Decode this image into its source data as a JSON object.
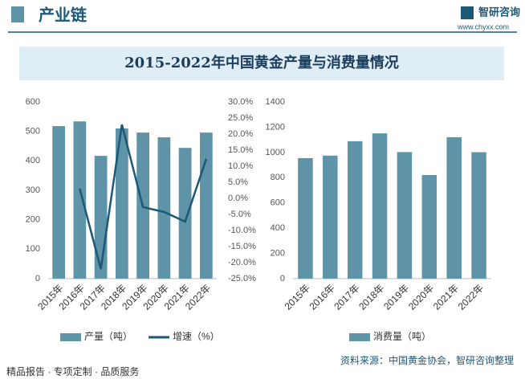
{
  "header": {
    "title": "产业链",
    "brand": "智研咨询",
    "url": "www.chyxx.com"
  },
  "title": "2015-2022年中国黄金产量与消费量情况",
  "chart_data": [
    {
      "type": "bar",
      "categories": [
        "2015年",
        "2016年",
        "2017年",
        "2018年",
        "2019年",
        "2020年",
        "2021年",
        "2022年"
      ],
      "series": [
        {
          "name": "产量（吨）",
          "color": "#5e93a8",
          "values": [
            518,
            534,
            417,
            510,
            496,
            480,
            444,
            496
          ]
        },
        {
          "name": "增速（%）",
          "color": "#1d5876",
          "type": "line",
          "axis": "y2",
          "values": [
            null,
            3.0,
            -22.0,
            23.0,
            -2.75,
            -4.25,
            -7.25,
            12.25
          ]
        }
      ],
      "ylim": [
        0,
        600
      ],
      "yticks": [
        0,
        100,
        200,
        300,
        400,
        500,
        600
      ],
      "y2lim": [
        -25,
        30
      ],
      "y2ticks": [
        {
          "value": -25,
          "label": "-25.0%"
        },
        {
          "value": -20,
          "label": "-20.0%"
        },
        {
          "value": -15,
          "label": "-15.0%"
        },
        {
          "value": -10,
          "label": "-10.0%"
        },
        {
          "value": -5,
          "label": "-5.0%"
        },
        {
          "value": 0,
          "label": "0.0%"
        },
        {
          "value": 5,
          "label": "5.0%"
        },
        {
          "value": 10,
          "label": "10.0%"
        },
        {
          "value": 15,
          "label": "15.0%"
        },
        {
          "value": 20,
          "label": "20.0%"
        },
        {
          "value": 25,
          "label": "25.0%"
        },
        {
          "value": 30,
          "label": "30.0%"
        }
      ]
    },
    {
      "type": "bar",
      "categories": [
        "2015年",
        "2016年",
        "2017年",
        "2018年",
        "2019年",
        "2020年",
        "2021年",
        "2022年"
      ],
      "series": [
        {
          "name": "消费量（吨）",
          "color": "#5e93a8",
          "values": [
            955,
            975,
            1089,
            1151,
            1003,
            821,
            1121,
            1002
          ]
        }
      ],
      "ylim": [
        0,
        1400
      ],
      "yticks": [
        0,
        200,
        400,
        600,
        800,
        1000,
        1200,
        1400
      ]
    }
  ],
  "footer": {
    "source": "资料来源：中国黄金协会，智研咨询整理",
    "slogan": "精品报告 · 专项定制 · 品质服务"
  }
}
